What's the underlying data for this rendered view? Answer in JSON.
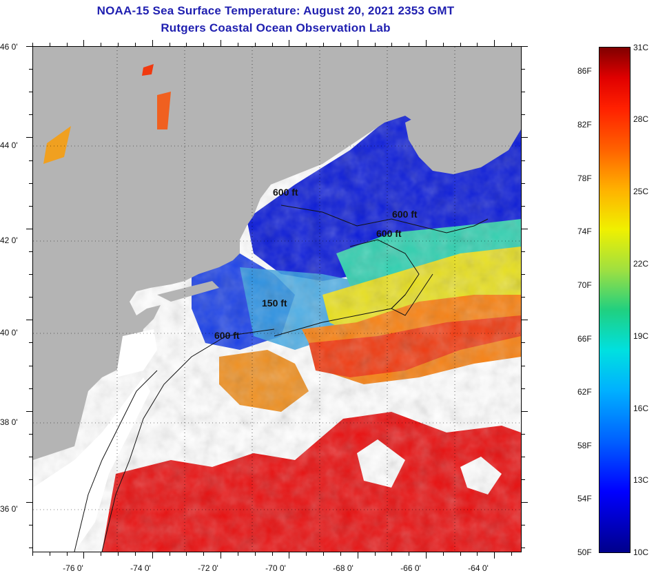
{
  "title": {
    "line1": "NOAA-15 Sea Surface Temperature:  August 20, 2021 2353 GMT",
    "line2": "Rutgers Coastal Ocean Observation Lab"
  },
  "map": {
    "latitude_labels": [
      "46 0'",
      "44 0'",
      "42 0'",
      "40 0'",
      "38 0'",
      "36 0'"
    ],
    "longitude_labels": [
      "-76 0'",
      "-74 0'",
      "-72 0'",
      "-70 0'",
      "-68 0'",
      "-66 0'",
      "-64 0'"
    ],
    "contour_labels": [
      "600 ft",
      "600 ft",
      "600 ft",
      "150 ft",
      "600 ft"
    ],
    "colors": {
      "land": "#b4b4b4",
      "cloud": "#ffffff",
      "cold": "#0a1ad8",
      "mid": "#20d0a0",
      "warm": "#f5d000",
      "hot": "#f03a10",
      "hottest": "#e81010"
    }
  },
  "colorbar": {
    "celsius_labels": [
      "31C",
      "28C",
      "25C",
      "22C",
      "19C",
      "16C",
      "13C",
      "10C"
    ],
    "fahrenheit_labels": [
      "86F",
      "82F",
      "78F",
      "74F",
      "70F",
      "66F",
      "62F",
      "58F",
      "54F",
      "50F"
    ]
  }
}
